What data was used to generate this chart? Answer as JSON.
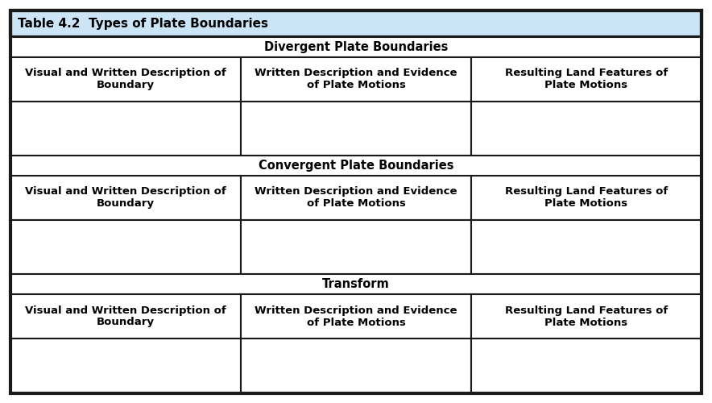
{
  "title": "Table 4.2  Types of Plate Boundaries",
  "sections": [
    {
      "section_title": "Divergent Plate Boundaries",
      "columns": [
        "Visual and Written Description of\nBoundary",
        "Written Description and Evidence\nof Plate Motions",
        "Resulting Land Features of\nPlate Motions"
      ]
    },
    {
      "section_title": "Convergent Plate Boundaries",
      "columns": [
        "Visual and Written Description of\nBoundary",
        "Written Description and Evidence\nof Plate Motions",
        "Resulting Land Features of\nPlate Motions"
      ]
    },
    {
      "section_title": "Transform",
      "columns": [
        "Visual and Written Description of\nBoundary",
        "Written Description and Evidence\nof Plate Motions",
        "Resulting Land Features of\nPlate Motions"
      ]
    }
  ],
  "title_bg": "#cce5f6",
  "section_bg": "#ffffff",
  "header_bg": "#ffffff",
  "empty_cell_bg": "#ffffff",
  "border_color": "#1a1a1a",
  "text_color": "#000000",
  "title_fontsize": 11,
  "section_fontsize": 10.5,
  "header_fontsize": 9.5,
  "outer_border_lw": 3.0,
  "inner_border_lw": 1.5,
  "fig_width": 8.84,
  "fig_height": 5.0
}
